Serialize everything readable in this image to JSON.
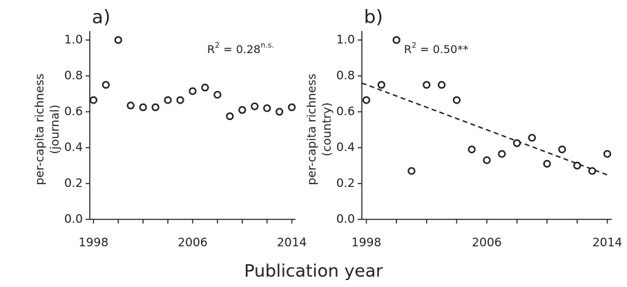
{
  "xlabel": "Publication year",
  "chart_data": [
    {
      "type": "scatter",
      "title": "a)",
      "ylabel": [
        "per-capita richness",
        "(journal)"
      ],
      "annotation": [
        {
          "text": "R"
        },
        {
          "text": "2",
          "sup": true
        },
        {
          "text": " = 0.28"
        },
        {
          "text": "n.s.",
          "sup": true
        }
      ],
      "x": [
        1998,
        1999,
        2000,
        2001,
        2002,
        2003,
        2004,
        2005,
        2006,
        2007,
        2008,
        2009,
        2010,
        2011,
        2012,
        2013,
        2014
      ],
      "values": [
        0.665,
        0.75,
        1.0,
        0.635,
        0.625,
        0.625,
        0.665,
        0.665,
        0.715,
        0.735,
        0.695,
        0.575,
        0.61,
        0.63,
        0.62,
        0.6,
        0.625
      ],
      "color": "#222222",
      "xlim": [
        1997.7,
        2014.3
      ],
      "xticks": [
        1998,
        2006,
        2014
      ],
      "xminor_ticks": [
        2000,
        2002,
        2004,
        2008,
        2010,
        2012
      ],
      "ylim": [
        0,
        1.05
      ],
      "yticks": [
        {
          "value": 0,
          "label": "0.0"
        },
        0.2,
        0.4,
        0.6,
        0.8,
        {
          "value": 1,
          "label": "1.0"
        }
      ]
    },
    {
      "type": "scatter",
      "title": "b)",
      "ylabel": [
        "per-capita richness",
        "(country)"
      ],
      "annotation": [
        {
          "text": "R"
        },
        {
          "text": "2",
          "sup": true
        },
        {
          "text": " = 0.50**"
        }
      ],
      "x": [
        1998,
        1999,
        2000,
        2001,
        2002,
        2003,
        2004,
        2005,
        2006,
        2007,
        2008,
        2009,
        2010,
        2011,
        2012,
        2013,
        2014
      ],
      "values": [
        0.665,
        0.75,
        1.0,
        0.27,
        0.75,
        0.75,
        0.665,
        0.39,
        0.33,
        0.365,
        0.425,
        0.455,
        0.31,
        0.39,
        0.3,
        0.27,
        0.365
      ],
      "color": "#222222",
      "trendline": {
        "x": [
          1997.7,
          2014.1
        ],
        "y": [
          0.76,
          0.245
        ],
        "dashed": true
      },
      "xlim": [
        1997.7,
        2014.3
      ],
      "xticks": [
        1998,
        2006,
        2014
      ],
      "xminor_ticks": [
        2000,
        2002,
        2004,
        2008,
        2010,
        2012
      ],
      "ylim": [
        0,
        1.05
      ],
      "yticks": [
        {
          "value": 0,
          "label": "0.0"
        },
        0.2,
        0.4,
        0.6,
        0.8,
        {
          "value": 1,
          "label": "1.0"
        }
      ]
    }
  ]
}
